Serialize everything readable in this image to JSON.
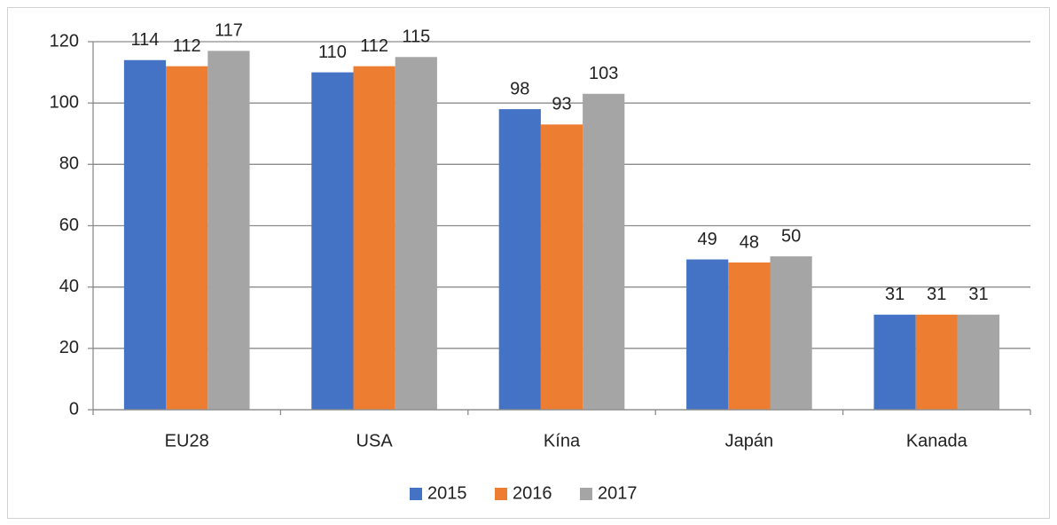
{
  "chart_data": {
    "type": "bar",
    "categories": [
      "EU28",
      "USA",
      "Kína",
      "Japán",
      "Kanada"
    ],
    "series": [
      {
        "name": "2015",
        "color": "#4472c4",
        "values": [
          114,
          110,
          98,
          49,
          31
        ]
      },
      {
        "name": "2016",
        "color": "#ed7d31",
        "values": [
          112,
          112,
          93,
          48,
          31
        ]
      },
      {
        "name": "2017",
        "color": "#a5a5a5",
        "values": [
          117,
          115,
          103,
          50,
          31
        ]
      }
    ],
    "ylim": [
      0,
      120
    ],
    "yticks": [
      0,
      20,
      40,
      60,
      80,
      100,
      120
    ],
    "grid": true,
    "legend": "bottom"
  }
}
